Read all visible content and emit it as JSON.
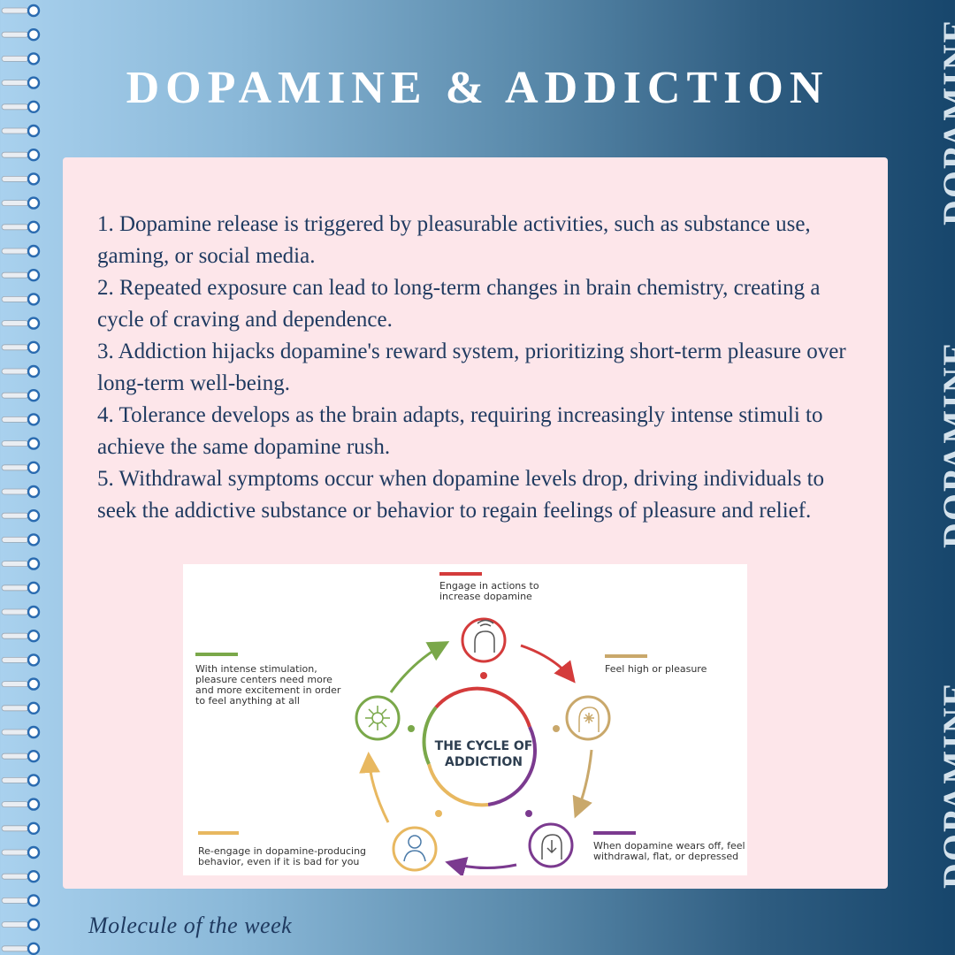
{
  "title": "DOPAMINE & ADDICTION",
  "sidebar_word": "DOPAMINE",
  "points": [
    "1. Dopamine release is triggered by pleasurable activities, such as substance use, gaming, or social media.",
    "2. Repeated exposure can lead to long-term changes in brain chemistry, creating a cycle of craving and dependence.",
    "3. Addiction hijacks dopamine's reward system, prioritizing short-term pleasure over long-term well-being.",
    "4. Tolerance develops as the brain adapts, requiring increasingly intense stimuli to achieve the same dopamine rush.",
    "5. Withdrawal symptoms occur when dopamine levels drop, driving individuals to seek the addictive substance or behavior to regain feelings of pleasure and relief."
  ],
  "diagram": {
    "center_label_line1": "THE CYCLE OF",
    "center_label_line2": "ADDICTION",
    "stages": [
      {
        "line1": "Engage in actions to",
        "line2": "increase dopamine",
        "color": "#d43b3b"
      },
      {
        "line1": "Feel high or pleasure",
        "color": "#c9a86b"
      },
      {
        "line1": "When dopamine wears off, feel",
        "line2": "withdrawal, flat, or depressed",
        "color": "#7b3a8f"
      },
      {
        "line1": "Re-engage in dopamine-producing",
        "line2": "behavior, even if it is bad for you",
        "color": "#e8b860"
      },
      {
        "line1": "With intense stimulation,",
        "line2": "pleasure centers need more",
        "line3": "and more excitement in order",
        "line4": "to feel anything at all",
        "color": "#7aa84a"
      }
    ]
  },
  "footer": "Molecule of the week",
  "colors": {
    "title": "#ffffff",
    "card_background": "#fde6ea",
    "body_text": "#1f3a60",
    "sidebar_text": "#d4e2ec"
  }
}
